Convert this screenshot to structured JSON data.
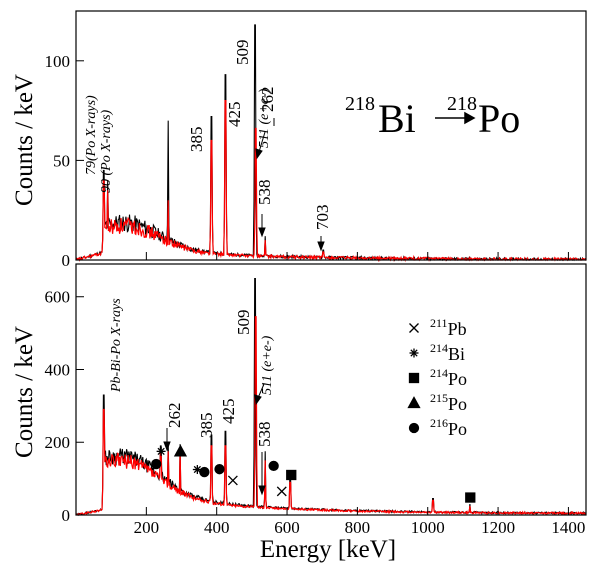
{
  "chart_data": [
    {
      "type": "line",
      "ylabel": "Counts / keV",
      "xlim": [
        0,
        1450
      ],
      "ylim": [
        0,
        125
      ],
      "yticks": [
        0,
        50,
        100
      ],
      "xticks": [
        200,
        400,
        600,
        800,
        1000,
        1200,
        1400
      ],
      "grid": false,
      "reaction": {
        "from_mass": "218",
        "from": "Bi",
        "to_mass": "218",
        "to": "Po"
      },
      "series": [
        {
          "color": "#000000",
          "peaks": [
            [
              79,
              45
            ],
            [
              90,
              40
            ],
            [
              262,
              70
            ],
            [
              385,
              72
            ],
            [
              425,
              93
            ],
            [
              509,
              118
            ],
            [
              538,
              12
            ],
            [
              703,
              5
            ]
          ]
        },
        {
          "color": "#ff0000",
          "peaks": [
            [
              79,
              40
            ],
            [
              90,
              35
            ],
            [
              262,
              30
            ],
            [
              385,
              60
            ],
            [
              425,
              80
            ],
            [
              511,
              66
            ],
            [
              538,
              10
            ],
            [
              703,
              4
            ]
          ]
        }
      ],
      "annotations": [
        {
          "text": "79(Po X-rays)",
          "x": 79
        },
        {
          "text": "90 (Po X-rays)",
          "x": 90
        },
        {
          "text": "262",
          "x": 262
        },
        {
          "text": "385",
          "x": 385
        },
        {
          "text": "425",
          "x": 425
        },
        {
          "text": "509",
          "x": 509
        },
        {
          "text": "511 (e+e-)",
          "x": 511
        },
        {
          "text": "538",
          "x": 538
        },
        {
          "text": "703",
          "x": 703
        }
      ]
    },
    {
      "type": "line",
      "xlabel": "Energy [keV]",
      "ylabel": "Counts / keV",
      "xlim": [
        0,
        1450
      ],
      "ylim": [
        0,
        690
      ],
      "yticks": [
        0,
        200,
        400,
        600
      ],
      "xticks": [
        200,
        400,
        600,
        800,
        1000,
        1200,
        1400
      ],
      "grid": false,
      "series": [
        {
          "color": "#000000",
          "peaks": [
            [
              79,
              330
            ],
            [
              241,
              190
            ],
            [
              262,
              200
            ],
            [
              296,
              195
            ],
            [
              385,
              220
            ],
            [
              425,
              230
            ],
            [
              509,
              650
            ],
            [
              538,
              175
            ],
            [
              609,
              100
            ],
            [
              1015,
              45
            ],
            [
              1120,
              30
            ]
          ]
        },
        {
          "color": "#ff0000",
          "peaks": [
            [
              79,
              290
            ],
            [
              241,
              170
            ],
            [
              262,
              175
            ],
            [
              296,
              185
            ],
            [
              385,
              190
            ],
            [
              425,
              190
            ],
            [
              511,
              545
            ],
            [
              538,
              150
            ],
            [
              609,
              90
            ],
            [
              1015,
              40
            ],
            [
              1120,
              25
            ]
          ]
        }
      ],
      "annotations": [
        {
          "text": "Pb-Bi-Po X-rays",
          "x": 80
        },
        {
          "text": "262",
          "x": 262
        },
        {
          "text": "385",
          "x": 385
        },
        {
          "text": "425",
          "x": 425
        },
        {
          "text": "509",
          "x": 509
        },
        {
          "text": "511 (e+e-)",
          "x": 511
        },
        {
          "text": "538",
          "x": 538
        }
      ],
      "markers": [
        {
          "symbol": "circle",
          "x": 228,
          "y": 140
        },
        {
          "symbol": "asterisk",
          "x": 242,
          "y": 175
        },
        {
          "symbol": "triangle",
          "x": 297,
          "y": 175
        },
        {
          "symbol": "asterisk",
          "x": 345,
          "y": 125
        },
        {
          "symbol": "circle",
          "x": 365,
          "y": 118
        },
        {
          "symbol": "circle",
          "x": 408,
          "y": 126
        },
        {
          "symbol": "cross",
          "x": 446,
          "y": 95
        },
        {
          "symbol": "circle",
          "x": 562,
          "y": 135
        },
        {
          "symbol": "cross",
          "x": 585,
          "y": 65
        },
        {
          "symbol": "square",
          "x": 612,
          "y": 110
        },
        {
          "symbol": "square",
          "x": 1121,
          "y": 48
        }
      ],
      "legend": {
        "placement": "right",
        "entries": [
          {
            "symbol": "cross",
            "mass": "211",
            "element": "Pb"
          },
          {
            "symbol": "asterisk",
            "mass": "214",
            "element": "Bi"
          },
          {
            "symbol": "square",
            "mass": "214",
            "element": "Po"
          },
          {
            "symbol": "triangle",
            "mass": "215",
            "element": "Po"
          },
          {
            "symbol": "circle",
            "mass": "216",
            "element": "Po"
          }
        ]
      }
    }
  ]
}
